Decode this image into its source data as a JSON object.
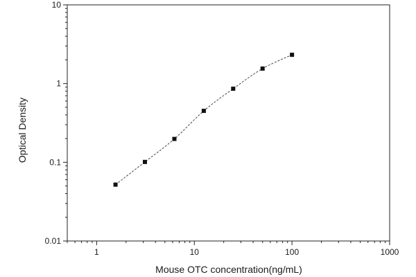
{
  "chart_data": {
    "type": "scatter",
    "title": "",
    "xlabel": "Mouse OTC concentration(ng/mL)",
    "ylabel": "Optical Density",
    "x_scale": "log",
    "y_scale": "log",
    "xlim": [
      0.5,
      1000
    ],
    "ylim": [
      0.01,
      10
    ],
    "x_major_ticks": [
      1,
      10,
      100,
      1000
    ],
    "x_tick_labels": [
      "1",
      "10",
      "100",
      "1000"
    ],
    "y_major_ticks": [
      0.01,
      0.1,
      1,
      10
    ],
    "y_tick_labels": [
      "0.01",
      "0.1",
      "1",
      "10"
    ],
    "grid": false,
    "legend": "none",
    "colors": {
      "marker": "#111111",
      "fit_line": "#444444",
      "axis": "#222222"
    },
    "series": [
      {
        "marker": "square",
        "fit": "dashed-curve",
        "x": [
          1.56,
          3.12,
          6.25,
          12.5,
          25,
          50,
          100
        ],
        "y": [
          0.052,
          0.101,
          0.198,
          0.45,
          0.86,
          1.55,
          2.32
        ]
      }
    ]
  }
}
